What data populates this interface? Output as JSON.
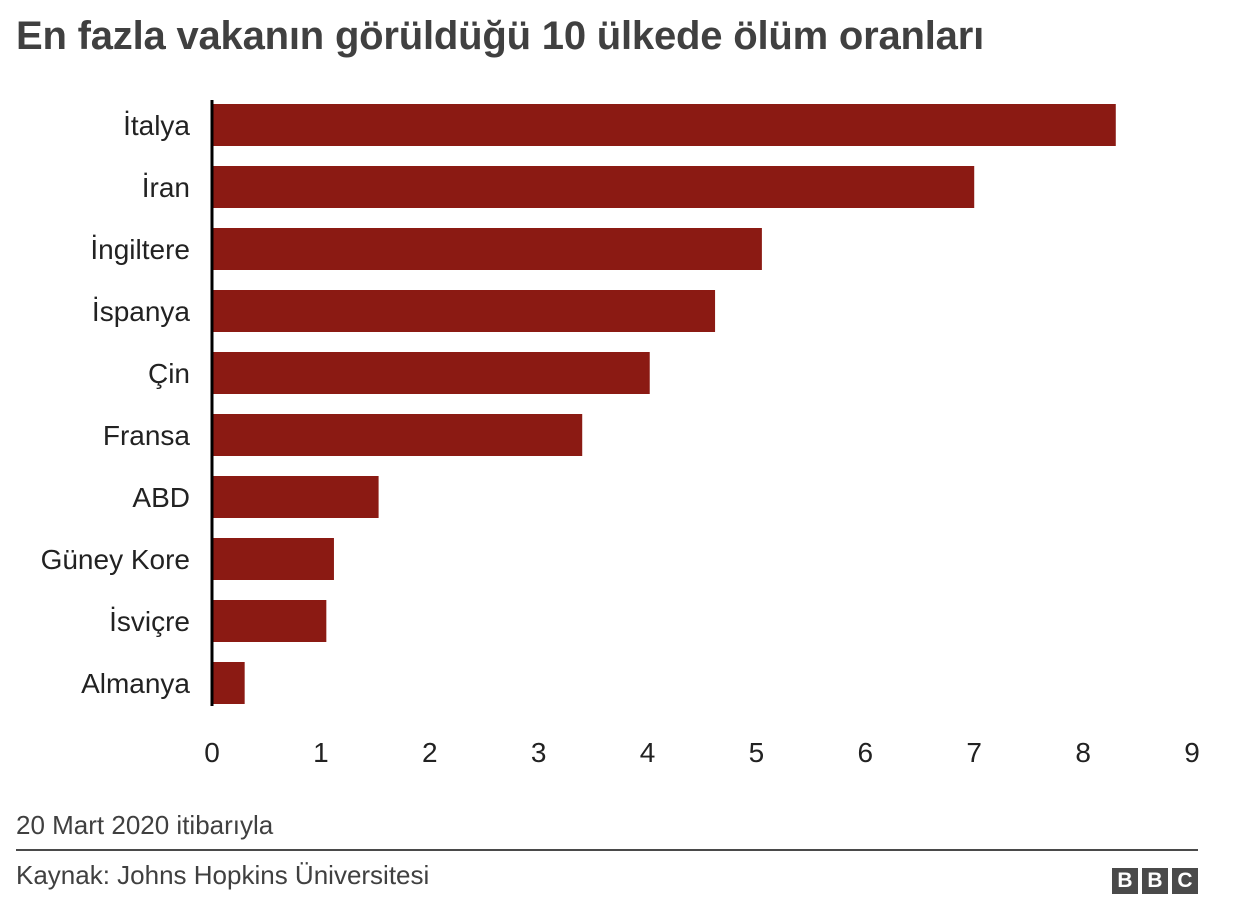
{
  "title": "En fazla vakanın görüldüğü 10 ülkede ölüm oranları",
  "footnote": "20 Mart 2020 itibarıyla",
  "source": "Kaynak: Johns Hopkins Üniversitesi",
  "logo": [
    "B",
    "B",
    "C"
  ],
  "colors": {
    "bar": "#8b1a13",
    "axis": "#000000",
    "text": "#222222",
    "title": "#404040"
  },
  "chart_data": {
    "type": "bar",
    "orientation": "horizontal",
    "categories": [
      "İtalya",
      "İran",
      "İngiltere",
      "İspanya",
      "Çin",
      "Fransa",
      "ABD",
      "Güney Kore",
      "İsviçre",
      "Almanya"
    ],
    "values": [
      8.3,
      7.0,
      5.05,
      4.62,
      4.02,
      3.4,
      1.53,
      1.12,
      1.05,
      0.3
    ],
    "xlim": [
      0,
      9
    ],
    "xticks": [
      0,
      1,
      2,
      3,
      4,
      5,
      6,
      7,
      8,
      9
    ],
    "grid": false,
    "legend": false
  }
}
